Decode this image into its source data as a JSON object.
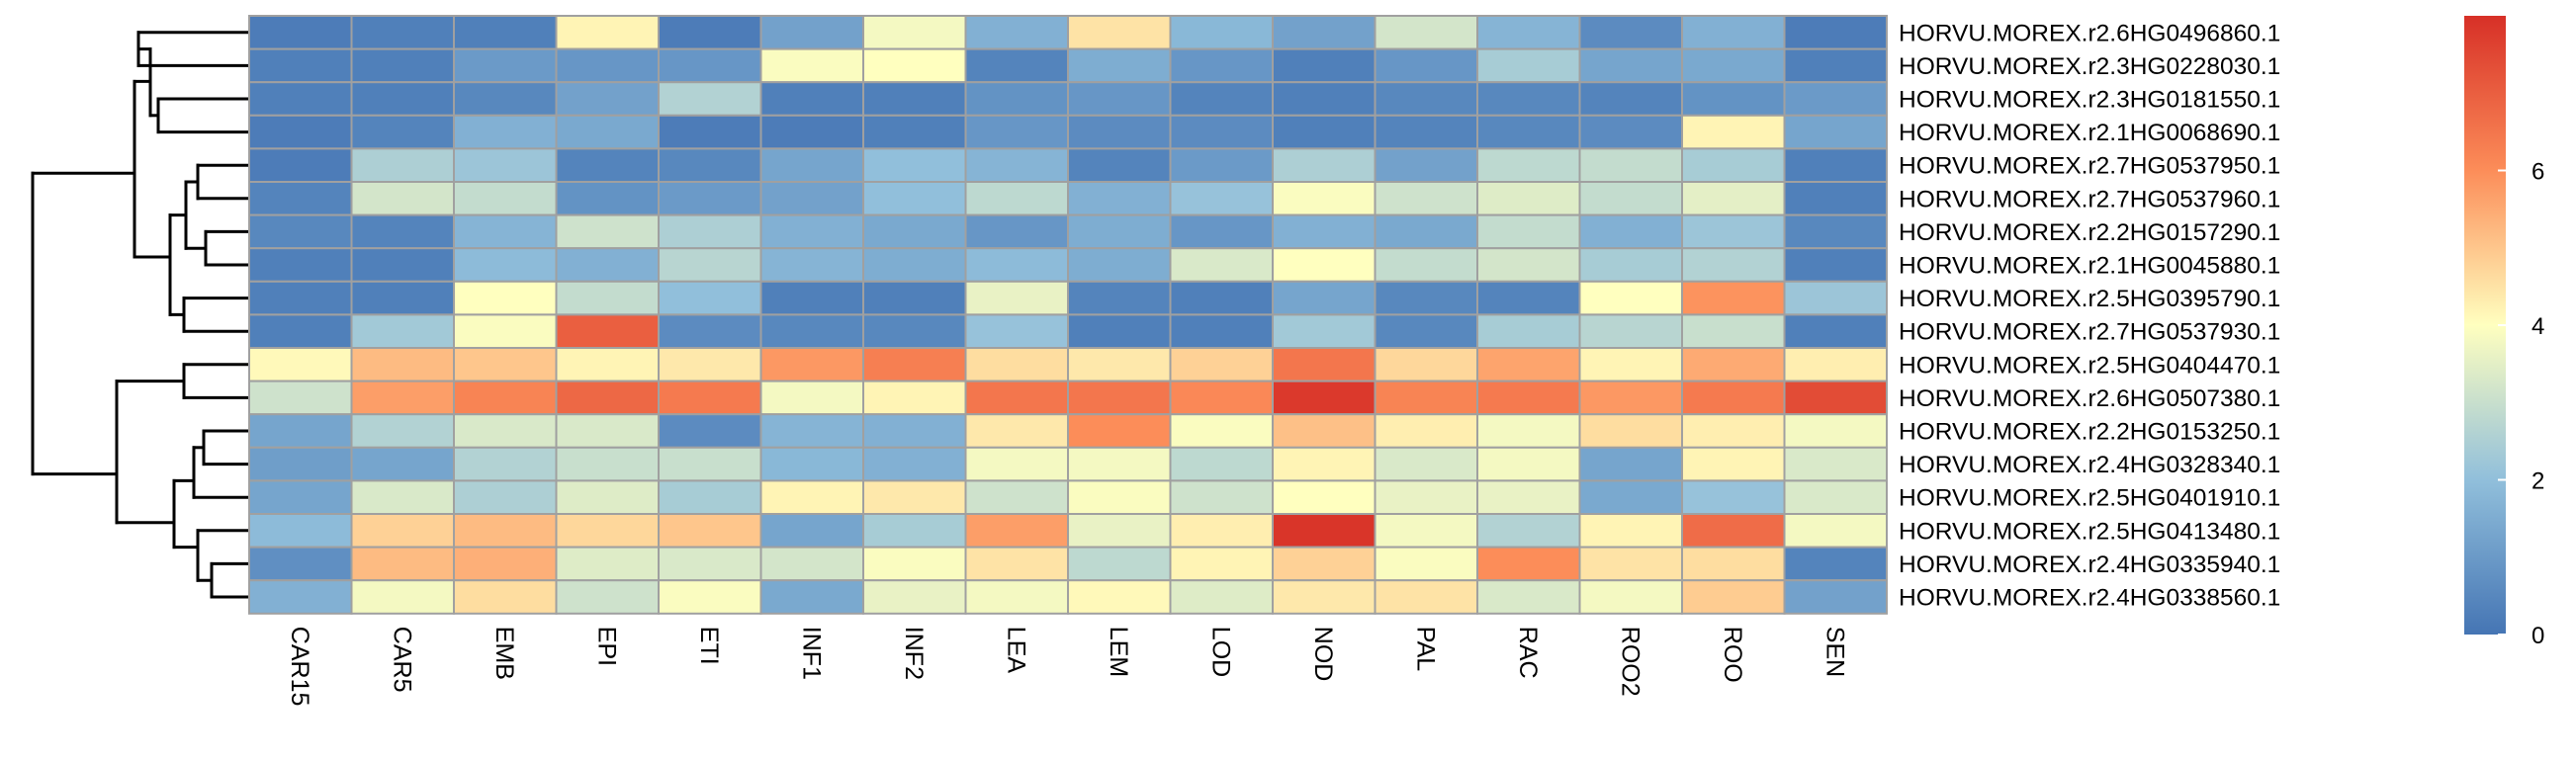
{
  "chart_data": {
    "type": "heatmap",
    "title": "",
    "columns": [
      "CAR15",
      "CAR5",
      "EMB",
      "EPI",
      "ETI",
      "INF1",
      "INF2",
      "LEA",
      "LEM",
      "LOD",
      "NOD",
      "PAL",
      "RAC",
      "ROO2",
      "ROO",
      "SEN"
    ],
    "rows": [
      "HORVU.MOREX.r2.6HG0496860.1",
      "HORVU.MOREX.r2.3HG0228030.1",
      "HORVU.MOREX.r2.3HG0181550.1",
      "HORVU.MOREX.r2.1HG0068690.1",
      "HORVU.MOREX.r2.7HG0537950.1",
      "HORVU.MOREX.r2.7HG0537960.1",
      "HORVU.MOREX.r2.2HG0157290.1",
      "HORVU.MOREX.r2.1HG0045880.1",
      "HORVU.MOREX.r2.5HG0395790.1",
      "HORVU.MOREX.r2.7HG0537930.1",
      "HORVU.MOREX.r2.5HG0404470.1",
      "HORVU.MOREX.r2.6HG0507380.1",
      "HORVU.MOREX.r2.2HG0153250.1",
      "HORVU.MOREX.r2.4HG0328340.1",
      "HORVU.MOREX.r2.5HG0401910.1",
      "HORVU.MOREX.r2.5HG0413480.1",
      "HORVU.MOREX.r2.4HG0335940.1",
      "HORVU.MOREX.r2.4HG0338560.1"
    ],
    "values": [
      [
        0.2,
        0.3,
        0.3,
        4.2,
        0.2,
        1.2,
        3.8,
        1.6,
        4.5,
        1.8,
        1.2,
        3.2,
        1.7,
        0.6,
        1.6,
        0.2
      ],
      [
        0.3,
        0.3,
        1.0,
        0.9,
        0.9,
        3.9,
        4.0,
        0.4,
        1.5,
        0.9,
        0.3,
        0.9,
        2.4,
        1.3,
        1.4,
        0.3
      ],
      [
        0.3,
        0.3,
        0.5,
        1.2,
        2.6,
        0.3,
        0.3,
        0.8,
        0.9,
        0.4,
        0.3,
        0.5,
        0.5,
        0.4,
        0.8,
        1.0
      ],
      [
        0.2,
        0.4,
        1.6,
        1.4,
        0.2,
        0.2,
        0.3,
        0.9,
        0.6,
        0.6,
        0.3,
        0.4,
        0.5,
        0.6,
        4.2,
        1.3
      ],
      [
        0.2,
        2.5,
        2.2,
        0.4,
        0.5,
        1.3,
        2.0,
        1.7,
        0.4,
        1.0,
        2.5,
        1.2,
        2.8,
        2.9,
        2.4,
        0.3
      ],
      [
        0.4,
        3.2,
        2.9,
        0.8,
        1.0,
        1.2,
        2.0,
        2.8,
        1.6,
        2.1,
        3.9,
        3.1,
        3.4,
        2.9,
        3.5,
        0.3
      ],
      [
        0.5,
        0.4,
        1.7,
        3.1,
        2.5,
        1.6,
        1.4,
        0.9,
        1.5,
        0.9,
        1.6,
        1.4,
        2.9,
        1.6,
        2.2,
        0.5
      ],
      [
        0.3,
        0.3,
        1.9,
        1.6,
        2.7,
        1.7,
        1.5,
        1.9,
        1.5,
        3.3,
        4.0,
        2.9,
        3.2,
        2.4,
        2.6,
        0.3
      ],
      [
        0.3,
        0.3,
        4.0,
        2.9,
        2.0,
        0.3,
        0.3,
        3.6,
        0.4,
        0.3,
        1.3,
        0.5,
        0.4,
        4.0,
        5.9,
        2.2
      ],
      [
        0.3,
        2.3,
        3.9,
        7.0,
        0.6,
        0.5,
        0.5,
        2.1,
        0.3,
        0.3,
        2.3,
        0.5,
        2.4,
        2.7,
        3.0,
        0.3
      ],
      [
        4.1,
        5.2,
        5.0,
        4.2,
        4.4,
        5.8,
        6.3,
        4.6,
        4.4,
        4.8,
        6.5,
        4.7,
        5.6,
        4.2,
        5.5,
        4.3
      ],
      [
        3.1,
        5.7,
        6.2,
        6.8,
        6.4,
        3.8,
        4.2,
        6.5,
        6.5,
        6.1,
        7.8,
        6.2,
        6.4,
        5.8,
        6.4,
        7.4
      ],
      [
        1.3,
        2.6,
        3.3,
        3.3,
        0.6,
        1.7,
        1.6,
        4.4,
        6.0,
        3.9,
        5.1,
        4.3,
        3.8,
        4.6,
        4.3,
        3.8
      ],
      [
        1.1,
        1.3,
        2.6,
        3.0,
        3.0,
        1.8,
        1.6,
        3.8,
        3.8,
        2.8,
        4.2,
        3.3,
        3.8,
        1.3,
        4.2,
        3.3
      ],
      [
        1.3,
        3.3,
        2.5,
        3.4,
        2.4,
        4.2,
        4.4,
        3.1,
        3.9,
        3.1,
        4.0,
        3.6,
        3.6,
        1.4,
        2.1,
        3.3
      ],
      [
        1.9,
        4.8,
        5.2,
        4.7,
        5.0,
        1.3,
        2.4,
        5.7,
        3.6,
        4.3,
        7.9,
        3.8,
        2.6,
        4.2,
        6.7,
        3.8
      ],
      [
        0.7,
        5.2,
        5.4,
        3.4,
        3.3,
        3.2,
        3.9,
        4.5,
        2.8,
        4.2,
        4.8,
        3.9,
        6.0,
        4.5,
        4.6,
        0.4
      ],
      [
        1.6,
        3.8,
        4.6,
        3.1,
        3.9,
        1.4,
        3.6,
        3.8,
        4.1,
        3.4,
        4.4,
        4.5,
        3.3,
        3.8,
        4.9,
        1.2
      ]
    ],
    "colorbar": {
      "ticks": [
        0,
        2,
        4,
        6
      ],
      "range": [
        0,
        8
      ],
      "colors": [
        "#4575B4",
        "#91BFDB",
        "#FFFFBF",
        "#FC8D59",
        "#D73027"
      ]
    },
    "row_dendrogram": true,
    "cell_border_color": "#a0a0a0"
  }
}
